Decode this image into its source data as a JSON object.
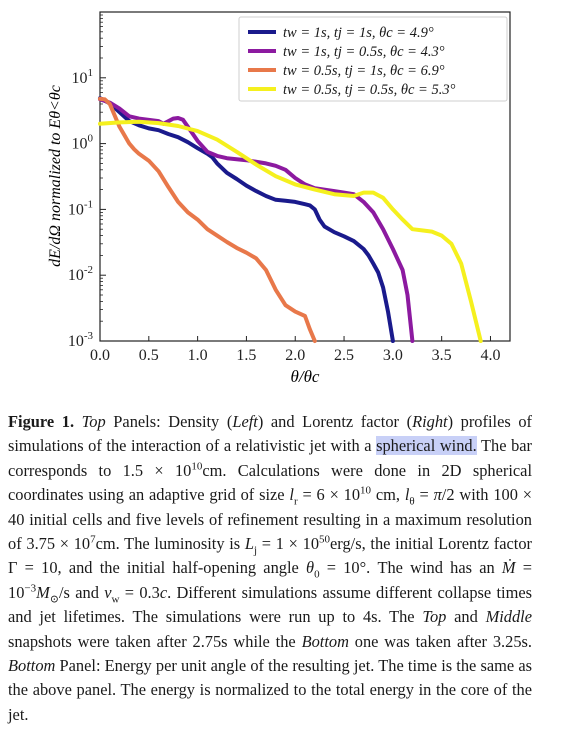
{
  "chart_data": {
    "type": "line",
    "xlabel": "θ/θc",
    "ylabel": "dE/dΩ normalized to Eθ<θc",
    "x_ticks": [
      "0.0",
      "0.5",
      "1.0",
      "1.5",
      "2.0",
      "2.5",
      "3.0",
      "3.5",
      "4.0"
    ],
    "y_ticks": [
      {
        "base": "10",
        "exp": "1",
        "value": 10
      },
      {
        "base": "10",
        "exp": "0",
        "value": 1
      },
      {
        "base": "10",
        "exp": "-1",
        "value": 0.1
      },
      {
        "base": "10",
        "exp": "-2",
        "value": 0.01
      },
      {
        "base": "10",
        "exp": "-3",
        "value": 0.001
      }
    ],
    "xlim": [
      0,
      4.2
    ],
    "ylim": [
      0.001,
      100
    ],
    "yscale": "log",
    "legend_position": "top-right",
    "series": [
      {
        "name": "tw = 1s, tj = 1s, θc = 4.9°",
        "color": "#1a1a8c",
        "points": [
          [
            0,
            4.9
          ],
          [
            0.1,
            4.1
          ],
          [
            0.2,
            3.0
          ],
          [
            0.3,
            2.2
          ],
          [
            0.4,
            1.9
          ],
          [
            0.5,
            1.7
          ],
          [
            0.6,
            1.6
          ],
          [
            0.7,
            1.4
          ],
          [
            0.8,
            1.25
          ],
          [
            0.9,
            1.05
          ],
          [
            1.0,
            0.85
          ],
          [
            1.1,
            0.7
          ],
          [
            1.15,
            0.62
          ],
          [
            1.2,
            0.5
          ],
          [
            1.3,
            0.36
          ],
          [
            1.4,
            0.29
          ],
          [
            1.5,
            0.23
          ],
          [
            1.6,
            0.19
          ],
          [
            1.7,
            0.16
          ],
          [
            1.8,
            0.14
          ],
          [
            1.9,
            0.135
          ],
          [
            2.0,
            0.13
          ],
          [
            2.1,
            0.12
          ],
          [
            2.15,
            0.115
          ],
          [
            2.2,
            0.1
          ],
          [
            2.25,
            0.07
          ],
          [
            2.3,
            0.055
          ],
          [
            2.4,
            0.045
          ],
          [
            2.5,
            0.039
          ],
          [
            2.6,
            0.033
          ],
          [
            2.7,
            0.025
          ],
          [
            2.75,
            0.02
          ],
          [
            2.8,
            0.015
          ],
          [
            2.85,
            0.011
          ],
          [
            2.9,
            0.0065
          ],
          [
            2.95,
            0.0028
          ],
          [
            3.0,
            0.001
          ]
        ]
      },
      {
        "name": "tw = 1s, tj = 0.5s, θc = 4.3°",
        "color": "#8c1aa0",
        "points": [
          [
            0,
            4.7
          ],
          [
            0.1,
            4.2
          ],
          [
            0.2,
            3.4
          ],
          [
            0.3,
            2.6
          ],
          [
            0.4,
            2.4
          ],
          [
            0.5,
            2.3
          ],
          [
            0.6,
            2.2
          ],
          [
            0.65,
            2.0
          ],
          [
            0.75,
            2.4
          ],
          [
            0.8,
            2.45
          ],
          [
            0.85,
            2.3
          ],
          [
            0.9,
            1.8
          ],
          [
            1.0,
            1.1
          ],
          [
            1.1,
            0.75
          ],
          [
            1.2,
            0.65
          ],
          [
            1.3,
            0.6
          ],
          [
            1.5,
            0.56
          ],
          [
            1.7,
            0.5
          ],
          [
            1.8,
            0.46
          ],
          [
            1.9,
            0.4
          ],
          [
            2.0,
            0.3
          ],
          [
            2.1,
            0.24
          ],
          [
            2.2,
            0.21
          ],
          [
            2.4,
            0.19
          ],
          [
            2.5,
            0.18
          ],
          [
            2.6,
            0.17
          ],
          [
            2.7,
            0.13
          ],
          [
            2.8,
            0.09
          ],
          [
            2.9,
            0.05
          ],
          [
            3.0,
            0.025
          ],
          [
            3.1,
            0.012
          ],
          [
            3.15,
            0.005
          ],
          [
            3.2,
            0.001
          ]
        ]
      },
      {
        "name": "tw = 0.5s, tj = 1s, θc = 6.9°",
        "color": "#e8784a",
        "points": [
          [
            0,
            4.8
          ],
          [
            0.05,
            4.7
          ],
          [
            0.1,
            4.0
          ],
          [
            0.2,
            1.8
          ],
          [
            0.3,
            1.0
          ],
          [
            0.35,
            0.82
          ],
          [
            0.4,
            0.7
          ],
          [
            0.5,
            0.55
          ],
          [
            0.6,
            0.38
          ],
          [
            0.7,
            0.22
          ],
          [
            0.8,
            0.13
          ],
          [
            0.9,
            0.09
          ],
          [
            1.0,
            0.07
          ],
          [
            1.1,
            0.05
          ],
          [
            1.2,
            0.04
          ],
          [
            1.3,
            0.032
          ],
          [
            1.4,
            0.026
          ],
          [
            1.5,
            0.022
          ],
          [
            1.6,
            0.018
          ],
          [
            1.7,
            0.012
          ],
          [
            1.8,
            0.006
          ],
          [
            1.9,
            0.0035
          ],
          [
            2.0,
            0.0028
          ],
          [
            2.1,
            0.0024
          ],
          [
            2.15,
            0.0015
          ],
          [
            2.2,
            0.001
          ]
        ]
      },
      {
        "name": "tw = 0.5s, tj = 0.5s, θc = 5.3°",
        "color": "#f5f01e",
        "points": [
          [
            0,
            2.0
          ],
          [
            0.2,
            2.1
          ],
          [
            0.4,
            2.15
          ],
          [
            0.6,
            2.05
          ],
          [
            0.8,
            1.85
          ],
          [
            1.0,
            1.55
          ],
          [
            1.2,
            1.15
          ],
          [
            1.4,
            0.75
          ],
          [
            1.6,
            0.48
          ],
          [
            1.8,
            0.32
          ],
          [
            2.0,
            0.24
          ],
          [
            2.2,
            0.2
          ],
          [
            2.4,
            0.17
          ],
          [
            2.6,
            0.16
          ],
          [
            2.7,
            0.18
          ],
          [
            2.8,
            0.18
          ],
          [
            2.9,
            0.15
          ],
          [
            3.0,
            0.1
          ],
          [
            3.1,
            0.07
          ],
          [
            3.2,
            0.05
          ],
          [
            3.3,
            0.048
          ],
          [
            3.4,
            0.046
          ],
          [
            3.5,
            0.04
          ],
          [
            3.6,
            0.03
          ],
          [
            3.7,
            0.015
          ],
          [
            3.8,
            0.004
          ],
          [
            3.9,
            0.001
          ]
        ]
      }
    ]
  },
  "caption": {
    "label": "Figure 1.",
    "segments": [
      {
        "t": " "
      },
      {
        "t": "Top",
        "i": true
      },
      {
        "t": " Panels: Density ("
      },
      {
        "t": "Left",
        "i": true
      },
      {
        "t": ") and Lorentz factor ("
      },
      {
        "t": "Right",
        "i": true
      },
      {
        "t": ") profiles of simulations of the interaction of a relativistic jet with a "
      },
      {
        "t": "spherical wind.",
        "hl": true
      },
      {
        "t": " The bar corresponds to 1.5 × 10"
      },
      {
        "t": "10",
        "sup": true
      },
      {
        "t": "cm. Calculations were done in 2D spherical coordinates using an adaptive grid of size "
      },
      {
        "t": "l",
        "i": true
      },
      {
        "t": "r",
        "sub": true
      },
      {
        "t": " = 6 × 10"
      },
      {
        "t": "10",
        "sup": true
      },
      {
        "t": " cm, "
      },
      {
        "t": "l",
        "i": true
      },
      {
        "t": "θ",
        "sub": true
      },
      {
        "t": " = "
      },
      {
        "t": "π",
        "i": true
      },
      {
        "t": "/2 with 100 × 40 initial cells and five levels of refinement resulting in a maximum resolution of 3.75 × 10"
      },
      {
        "t": "7",
        "sup": true
      },
      {
        "t": "cm. The luminosity is "
      },
      {
        "t": "L",
        "i": true
      },
      {
        "t": "j",
        "sub": true
      },
      {
        "t": " = 1 × 10"
      },
      {
        "t": "50",
        "sup": true
      },
      {
        "t": "erg/s, the initial Lorentz factor Γ = 10, and the initial half-opening angle "
      },
      {
        "t": "θ",
        "i": true
      },
      {
        "t": "0",
        "sub": true
      },
      {
        "t": " = 10°. The wind has an "
      },
      {
        "t": "Ṁ",
        "i": true
      },
      {
        "t": " = 10"
      },
      {
        "t": "−3",
        "sup": true
      },
      {
        "t": "M",
        "i": true
      },
      {
        "t": "⊙",
        "sub": true
      },
      {
        "t": "/s and "
      },
      {
        "t": "v",
        "i": true
      },
      {
        "t": "w",
        "sub": true
      },
      {
        "t": " = 0.3"
      },
      {
        "t": "c",
        "i": true
      },
      {
        "t": ". Different simulations assume different collapse times and jet lifetimes. The simulations were run up to 4s. The "
      },
      {
        "t": "Top",
        "i": true
      },
      {
        "t": " and "
      },
      {
        "t": "Middle",
        "i": true
      },
      {
        "t": " snapshots were taken after 2.75s while the "
      },
      {
        "t": "Bottom",
        "i": true
      },
      {
        "t": " one was taken after 3.25s. "
      },
      {
        "t": "Bottom",
        "i": true
      },
      {
        "t": " Panel: Energy per unit angle of the resulting jet. The time is the same as the above panel. The energy is normalized to the total energy in the core of the jet."
      }
    ]
  }
}
